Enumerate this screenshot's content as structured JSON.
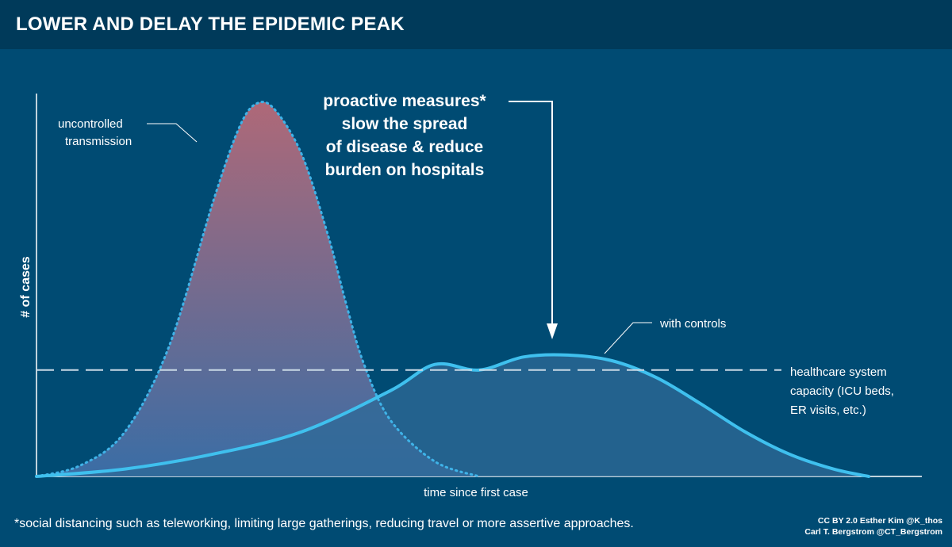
{
  "header": {
    "title": "LOWER AND DELAY THE EPIDEMIC PEAK"
  },
  "chart_data": {
    "type": "area",
    "xlabel": "time since first case",
    "ylabel": "# of cases",
    "xlim": [
      0,
      100
    ],
    "ylim": [
      0,
      100
    ],
    "grid": false,
    "series": [
      {
        "name": "uncontrolled transmission",
        "x": [
          0,
          5,
          10,
          15,
          20,
          23,
          25,
          27,
          30,
          33,
          35,
          37,
          40,
          45,
          50
        ],
        "values": [
          0,
          3,
          12,
          35,
          74,
          94,
          100,
          98,
          86,
          64,
          46,
          30,
          15,
          4,
          0
        ],
        "color": "#3fb3e8",
        "fill_top": "#b86a78",
        "fill_bottom": "#3d6fa8"
      },
      {
        "name": "with controls",
        "x": [
          0,
          10,
          20,
          30,
          40,
          45,
          50,
          55,
          60,
          65,
          70,
          75,
          80,
          85,
          90,
          94
        ],
        "values": [
          0,
          2,
          6,
          12,
          23,
          30,
          28.5,
          32,
          32.5,
          31,
          26.5,
          19.5,
          12,
          6,
          2,
          0
        ],
        "color": "#3fc0ee",
        "fill": "#2f6a97"
      }
    ],
    "threshold": {
      "value": 28.5,
      "label_lines": [
        "healthcare system",
        "capacity (ICU beds,",
        "ER visits, etc.)"
      ]
    },
    "annotations": {
      "uncontrolled": [
        "uncontrolled",
        "transmission"
      ],
      "controls": [
        "with controls"
      ],
      "measures": [
        "proactive measures*",
        "slow the spread",
        "of disease & reduce",
        "burden on hospitals"
      ]
    }
  },
  "footer": {
    "footnote": "*social distancing such as teleworking, limiting large gatherings, reducing travel or more assertive approaches.",
    "credit_line1": "CC BY 2.0  Esther Kim  @K_thos",
    "credit_line2": "Carl T. Bergstrom  @CT_Bergstrom"
  }
}
